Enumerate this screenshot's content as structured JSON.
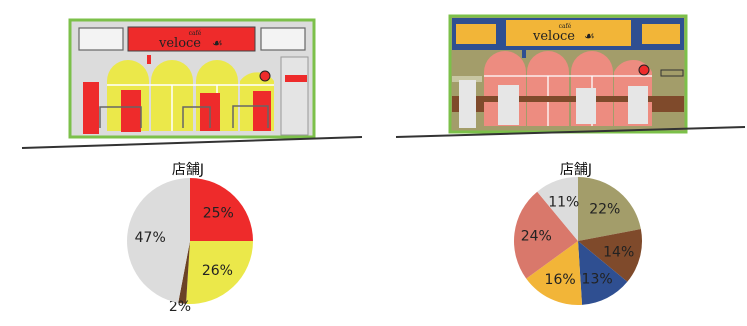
{
  "left_store": {
    "sign": {
      "small": "café",
      "brand": "veloce"
    }
  },
  "right_store": {
    "sign": {
      "small": "café",
      "brand": "veloce"
    }
  },
  "chart_data": [
    {
      "type": "pie",
      "title": "店舗J",
      "values": [
        25,
        26,
        2,
        47
      ],
      "labels": [
        "25%",
        "26%",
        "2%",
        "47%"
      ],
      "colors": [
        "#ee2b2b",
        "#ebe84a",
        "#6b4226",
        "#dcdcdc"
      ]
    },
    {
      "type": "pie",
      "title": "店舗J",
      "values": [
        22,
        14,
        13,
        16,
        24,
        11
      ],
      "labels": [
        "22%",
        "14%",
        "13%",
        "16%",
        "24%",
        "11%"
      ],
      "colors": [
        "#a39d6a",
        "#7f4a2b",
        "#2f4f91",
        "#f2b538",
        "#d9786b",
        "#dcdcdc"
      ]
    }
  ]
}
